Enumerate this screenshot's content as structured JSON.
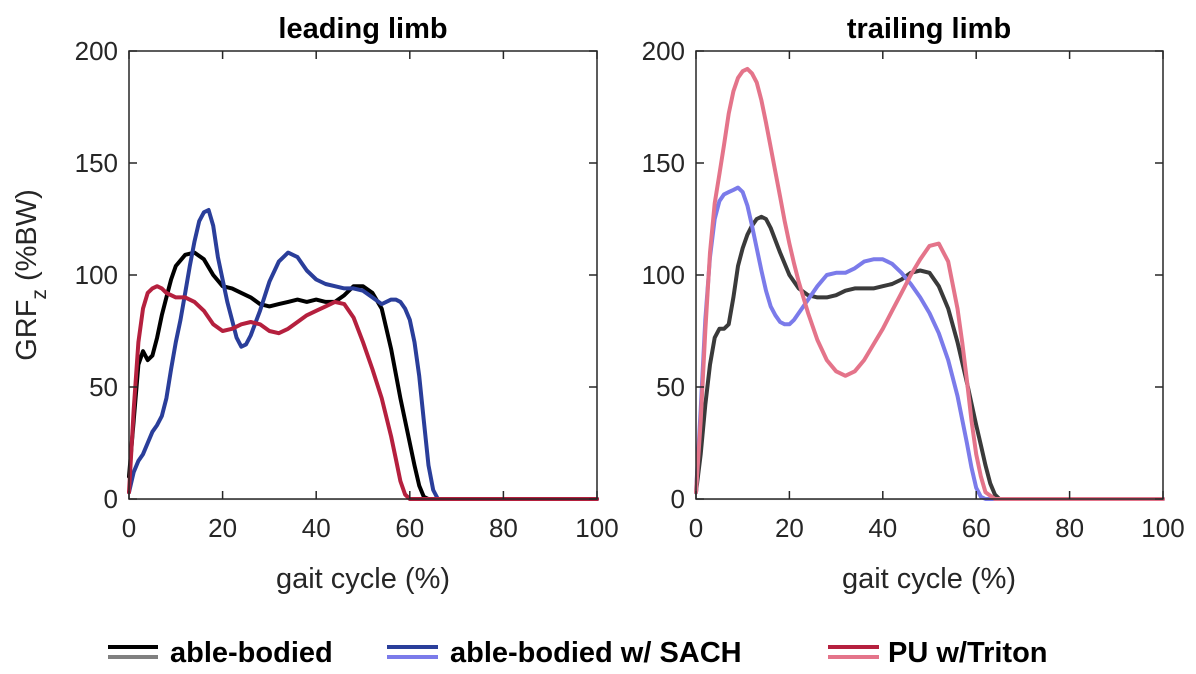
{
  "figure": {
    "ylabel_main": "GRF",
    "ylabel_sub": "z",
    "ylabel_unit": " (%BW)"
  },
  "legend": [
    {
      "label": "able-bodied",
      "colors": [
        "#000000",
        "#808080"
      ]
    },
    {
      "label": "able-bodied w/ SACH",
      "colors": [
        "#2a3e9a",
        "#7b7bea"
      ]
    },
    {
      "label": "PU w/Triton",
      "colors": [
        "#b5203e",
        "#e4748a"
      ]
    }
  ],
  "chart_data": [
    {
      "type": "line",
      "title": "leading limb",
      "xlabel": "gait cycle (%)",
      "ylabel": "GRFz (%BW)",
      "xlim": [
        0,
        100
      ],
      "ylim": [
        0,
        200
      ],
      "xticks": [
        0,
        20,
        40,
        60,
        80,
        100
      ],
      "yticks": [
        0,
        50,
        100,
        150,
        200
      ],
      "xtick_labels": [
        "0",
        "20",
        "40",
        "60",
        "80",
        "100"
      ],
      "ytick_labels": [
        "0",
        "50",
        "100",
        "150",
        "200"
      ],
      "grid": false,
      "series": [
        {
          "name": "able-bodied",
          "color": "#000000",
          "x": [
            0,
            1,
            2,
            3,
            4,
            5,
            6,
            7,
            8,
            9,
            10,
            12,
            14,
            16,
            18,
            20,
            22,
            24,
            26,
            28,
            30,
            32,
            34,
            36,
            38,
            40,
            42,
            44,
            46,
            48,
            50,
            52,
            54,
            56,
            58,
            60,
            61,
            62,
            63,
            64,
            66,
            80,
            100
          ],
          "y": [
            10,
            35,
            60,
            66,
            62,
            64,
            72,
            82,
            90,
            98,
            104,
            109,
            110,
            107,
            100,
            95,
            94,
            92,
            90,
            87,
            86,
            87,
            88,
            89,
            88,
            89,
            88,
            88,
            91,
            95,
            95,
            92,
            85,
            67,
            45,
            25,
            15,
            6,
            1,
            0,
            0,
            0,
            0
          ]
        },
        {
          "name": "able-bodied w/ SACH",
          "color": "#2a3e9a",
          "x": [
            0,
            1,
            2,
            3,
            4,
            5,
            6,
            7,
            8,
            9,
            10,
            11,
            12,
            13,
            14,
            15,
            16,
            17,
            18,
            19,
            20,
            21,
            22,
            23,
            24,
            25,
            26,
            28,
            30,
            32,
            34,
            36,
            38,
            40,
            42,
            44,
            46,
            48,
            50,
            52,
            54,
            56,
            57,
            58,
            59,
            60,
            61,
            62,
            63,
            64,
            65,
            66,
            68,
            80,
            100
          ],
          "y": [
            3,
            12,
            17,
            20,
            25,
            30,
            33,
            37,
            45,
            58,
            70,
            80,
            92,
            104,
            115,
            124,
            128,
            129,
            122,
            108,
            98,
            88,
            80,
            72,
            68,
            69,
            73,
            84,
            97,
            106,
            110,
            108,
            102,
            98,
            96,
            95,
            94,
            94,
            93,
            90,
            87,
            89,
            89,
            88,
            85,
            80,
            70,
            55,
            35,
            15,
            4,
            0,
            0,
            0,
            0
          ]
        },
        {
          "name": "PU w/Triton",
          "color": "#b5203e",
          "x": [
            0,
            1,
            2,
            3,
            4,
            5,
            6,
            7,
            8,
            9,
            10,
            12,
            14,
            16,
            18,
            20,
            22,
            24,
            26,
            28,
            30,
            32,
            34,
            36,
            38,
            40,
            42,
            44,
            46,
            48,
            50,
            52,
            54,
            56,
            57,
            58,
            59,
            60,
            62,
            80,
            100
          ],
          "y": [
            3,
            40,
            70,
            85,
            92,
            94,
            95,
            94,
            92,
            91,
            90,
            90,
            88,
            84,
            78,
            75,
            76,
            78,
            79,
            78,
            75,
            74,
            76,
            79,
            82,
            84,
            86,
            88,
            87,
            81,
            70,
            58,
            45,
            28,
            18,
            8,
            2,
            0,
            0,
            0,
            0
          ]
        }
      ]
    },
    {
      "type": "line",
      "title": "trailing limb",
      "xlabel": "gait cycle (%)",
      "ylabel": "",
      "xlim": [
        0,
        100
      ],
      "ylim": [
        0,
        200
      ],
      "xticks": [
        0,
        20,
        40,
        60,
        80,
        100
      ],
      "yticks": [
        0,
        50,
        100,
        150,
        200
      ],
      "xtick_labels": [
        "0",
        "20",
        "40",
        "60",
        "80",
        "100"
      ],
      "ytick_labels": [
        "0",
        "50",
        "100",
        "150",
        "200"
      ],
      "grid": false,
      "series": [
        {
          "name": "able-bodied",
          "color": "#3a3a3a",
          "x": [
            0,
            1,
            2,
            3,
            4,
            5,
            6,
            7,
            8,
            9,
            10,
            11,
            12,
            13,
            14,
            15,
            16,
            18,
            20,
            22,
            24,
            26,
            28,
            30,
            32,
            34,
            36,
            38,
            40,
            42,
            44,
            46,
            48,
            50,
            52,
            54,
            56,
            58,
            60,
            61,
            62,
            63,
            64,
            65,
            66,
            80,
            100
          ],
          "y": [
            3,
            20,
            42,
            60,
            72,
            76,
            76,
            78,
            90,
            104,
            112,
            118,
            122,
            125,
            126,
            125,
            121,
            110,
            100,
            94,
            91,
            90,
            90,
            91,
            93,
            94,
            94,
            94,
            95,
            96,
            98,
            101,
            102,
            101,
            95,
            85,
            70,
            52,
            33,
            24,
            15,
            7,
            2,
            0,
            0,
            0,
            0
          ]
        },
        {
          "name": "able-bodied w/ SACH",
          "color": "#7b7bea",
          "x": [
            0,
            1,
            2,
            3,
            4,
            5,
            6,
            7,
            8,
            9,
            10,
            11,
            12,
            13,
            14,
            15,
            16,
            17,
            18,
            19,
            20,
            21,
            22,
            23,
            24,
            26,
            28,
            30,
            32,
            34,
            36,
            38,
            40,
            42,
            44,
            46,
            48,
            50,
            52,
            54,
            56,
            58,
            59,
            60,
            61,
            62,
            80,
            100
          ],
          "y": [
            3,
            40,
            80,
            108,
            125,
            133,
            136,
            137,
            138,
            139,
            137,
            131,
            122,
            112,
            102,
            93,
            86,
            82,
            79,
            78,
            78,
            80,
            83,
            86,
            89,
            95,
            100,
            101,
            101,
            103,
            106,
            107,
            107,
            105,
            101,
            96,
            90,
            83,
            74,
            62,
            46,
            25,
            14,
            5,
            1,
            0,
            0,
            0
          ]
        },
        {
          "name": "PU w/Triton",
          "color": "#e4748a",
          "x": [
            0,
            1,
            2,
            3,
            4,
            5,
            6,
            7,
            8,
            9,
            10,
            11,
            12,
            13,
            14,
            15,
            16,
            17,
            18,
            19,
            20,
            21,
            22,
            23,
            24,
            26,
            28,
            30,
            32,
            34,
            36,
            38,
            40,
            42,
            44,
            46,
            48,
            50,
            52,
            54,
            56,
            57,
            58,
            59,
            60,
            61,
            62,
            64,
            80,
            100
          ],
          "y": [
            3,
            35,
            75,
            110,
            132,
            145,
            158,
            172,
            182,
            188,
            191,
            192,
            190,
            186,
            178,
            168,
            157,
            146,
            135,
            124,
            114,
            105,
            97,
            90,
            83,
            71,
            62,
            57,
            55,
            57,
            62,
            69,
            76,
            84,
            92,
            100,
            107,
            113,
            114,
            106,
            85,
            70,
            53,
            35,
            20,
            10,
            3,
            0,
            0,
            0
          ]
        }
      ]
    }
  ]
}
